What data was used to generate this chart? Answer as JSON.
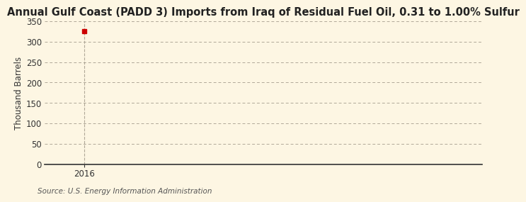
{
  "title": "Annual Gulf Coast (PADD 3) Imports from Iraq of Residual Fuel Oil, 0.31 to 1.00% Sulfur",
  "ylabel": "Thousand Barrels",
  "source": "Source: U.S. Energy Information Administration",
  "x_data": [
    2016
  ],
  "y_data": [
    326
  ],
  "point_color": "#cc0000",
  "ylim": [
    0,
    350
  ],
  "yticks": [
    0,
    50,
    100,
    150,
    200,
    250,
    300,
    350
  ],
  "xlim": [
    2015.4,
    2022.0
  ],
  "xticks": [
    2016
  ],
  "background_color": "#fdf6e3",
  "plot_bg_color": "#fdf6e3",
  "grid_color": "#b0a898",
  "vline_color": "#b0a898",
  "title_fontsize": 10.5,
  "label_fontsize": 8.5,
  "tick_fontsize": 8.5,
  "source_fontsize": 7.5
}
